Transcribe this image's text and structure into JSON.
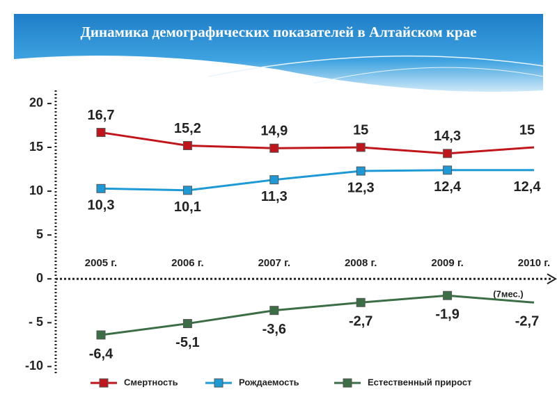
{
  "chart_data": {
    "type": "line",
    "title": "Динамика демографических показателей в Алтайском крае",
    "categories": [
      "2005 г.",
      "2006 г.",
      "2007 г.",
      "2008 г.",
      "2009 г.",
      "2010 г."
    ],
    "annotation": "(7мес.)",
    "series": [
      {
        "name": "Смертность",
        "color": "#c0151b",
        "values": [
          16.7,
          15.2,
          14.9,
          15,
          14.3,
          15
        ],
        "value_labels": [
          "16,7",
          "15,2",
          "14,9",
          "15",
          "14,3",
          "15"
        ]
      },
      {
        "name": "Рождаемость",
        "color": "#1d9ad6",
        "values": [
          10.3,
          10.1,
          11.3,
          12.3,
          12.4,
          12.4
        ],
        "value_labels": [
          "10,3",
          "10,1",
          "11,3",
          "12,3",
          "12,4",
          "12,4"
        ]
      },
      {
        "name": "Естественный прирост",
        "color": "#3c6e46",
        "values": [
          -6.4,
          -5.1,
          -3.6,
          -2.7,
          -1.9,
          -2.7
        ],
        "value_labels": [
          "-6,4",
          "-5,1",
          "-3,6",
          "-2,7",
          "-1,9",
          "-2,7"
        ]
      }
    ],
    "ylim": [
      -11,
      21.5
    ],
    "yticks": [
      20,
      15,
      10,
      5,
      0,
      {
        "value": -5,
        "label": "- 5"
      },
      -10
    ],
    "legend": "bottom"
  }
}
